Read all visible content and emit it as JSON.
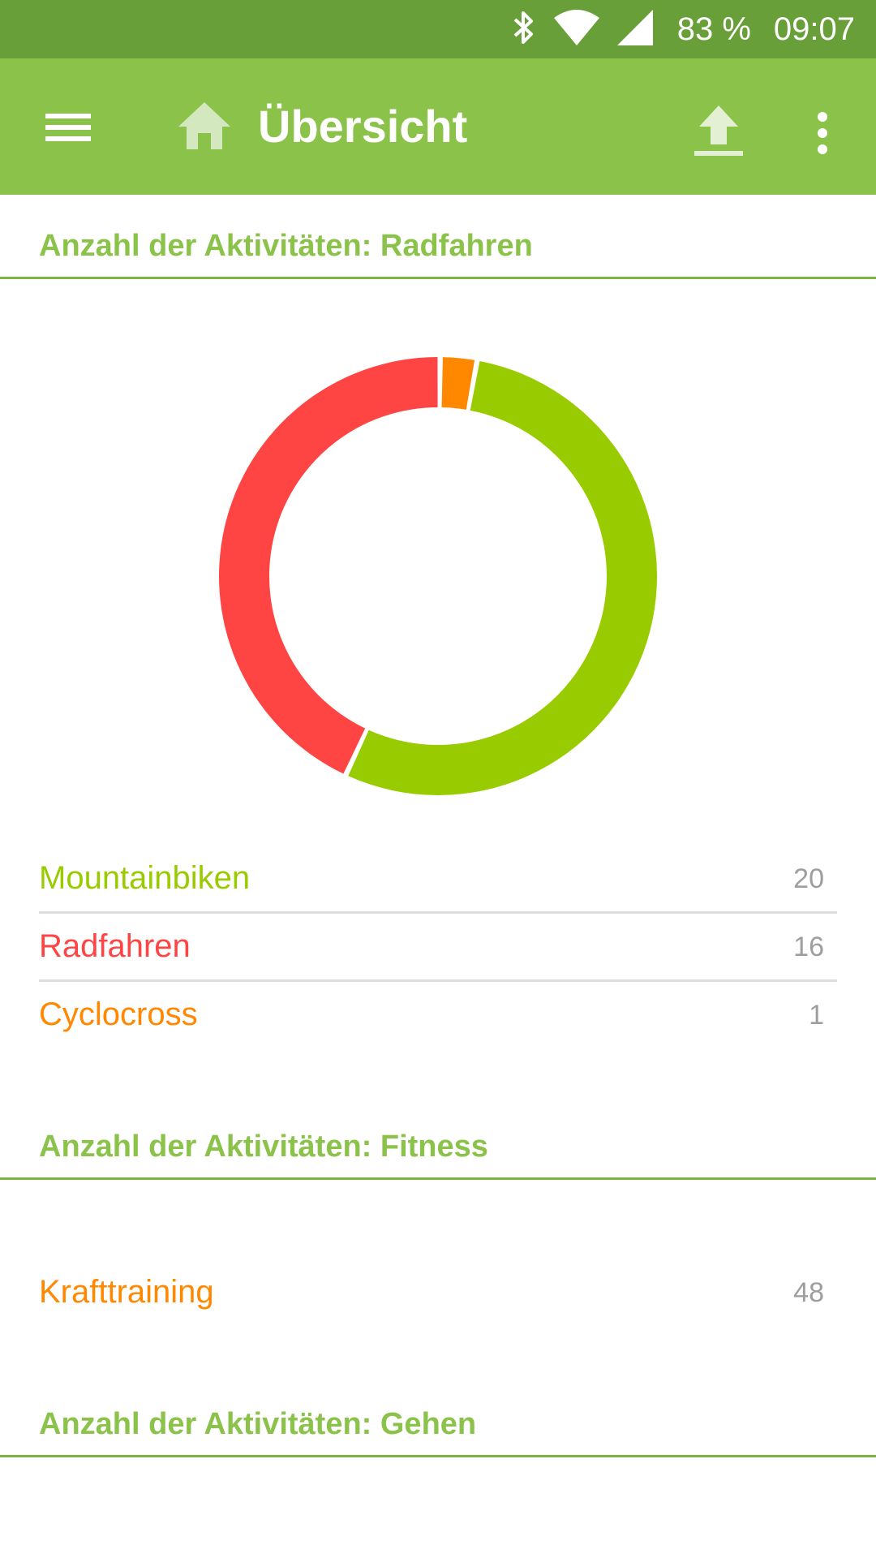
{
  "status_bar": {
    "battery": "83 %",
    "time": "09:07",
    "icons": [
      "bluetooth-icon",
      "wifi-icon",
      "signal-icon"
    ]
  },
  "app_bar": {
    "title": "Übersicht",
    "icons": [
      "menu-icon",
      "home-icon",
      "upload-icon",
      "more-vert-icon"
    ]
  },
  "colors": {
    "mountainbiken": "#99cc00",
    "radfahren": "#ff4444",
    "cyclocross": "#ff8800",
    "accent": "#8bc34a"
  },
  "sections": [
    {
      "title": "Anzahl der Aktivitäten: Radfahren",
      "items": [
        {
          "label": "Mountainbiken",
          "value": "20"
        },
        {
          "label": "Radfahren",
          "value": "16"
        },
        {
          "label": "Cyclocross",
          "value": "1"
        }
      ]
    },
    {
      "title": "Anzahl der Aktivitäten: Fitness",
      "items": [
        {
          "label": "Krafttraining",
          "value": "48"
        }
      ]
    },
    {
      "title": "Anzahl der Aktivitäten: Gehen",
      "items": []
    }
  ],
  "chart_data": {
    "type": "pie",
    "categories": [
      "Mountainbiken",
      "Radfahren",
      "Cyclocross"
    ],
    "values": [
      20,
      16,
      1
    ],
    "colors": [
      "#99cc00",
      "#ff4444",
      "#ff8800"
    ],
    "title": ""
  }
}
